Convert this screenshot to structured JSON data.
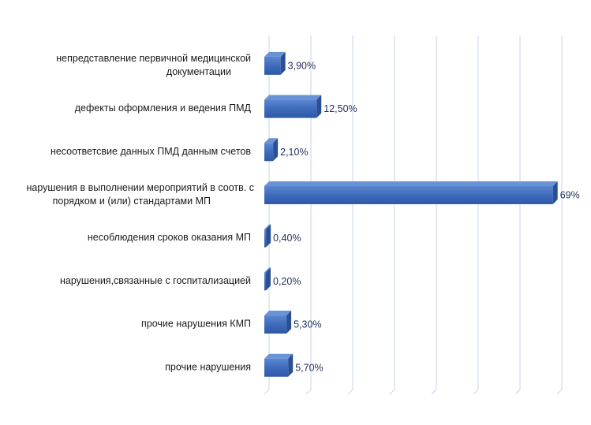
{
  "chart_data": {
    "type": "bar",
    "orientation": "horizontal",
    "title": "",
    "xlabel": "",
    "ylabel": "",
    "categories": [
      [
        "непредставление первичной медицинской",
        "документации"
      ],
      [
        "дефекты оформления и ведения ПМД"
      ],
      [
        "несоответсвие данных ПМД данным счетов"
      ],
      [
        "нарушения в выполнении мероприятий в соотв. с",
        "порядком и (или) стандартами МП"
      ],
      [
        "несоблюдения сроков оказания МП"
      ],
      [
        "нарушения,связанные с госпитализацией"
      ],
      [
        "прочие нарушения КМП"
      ],
      [
        "прочие нарушения"
      ]
    ],
    "values": [
      3.9,
      12.5,
      2.1,
      69,
      0.4,
      0.2,
      5.3,
      5.7
    ],
    "value_labels": [
      "3,90%",
      "12,50%",
      "2,10%",
      "69%",
      "0,40%",
      "0,20%",
      "5,30%",
      "5,70%"
    ],
    "xlim": [
      0,
      70
    ],
    "grid": true,
    "legend": "none",
    "colors": {
      "bar_front": "#4472c4",
      "bar_top": "#6a92d6",
      "bar_side": "#2a4f94",
      "grid": "#c9d6ea"
    }
  }
}
